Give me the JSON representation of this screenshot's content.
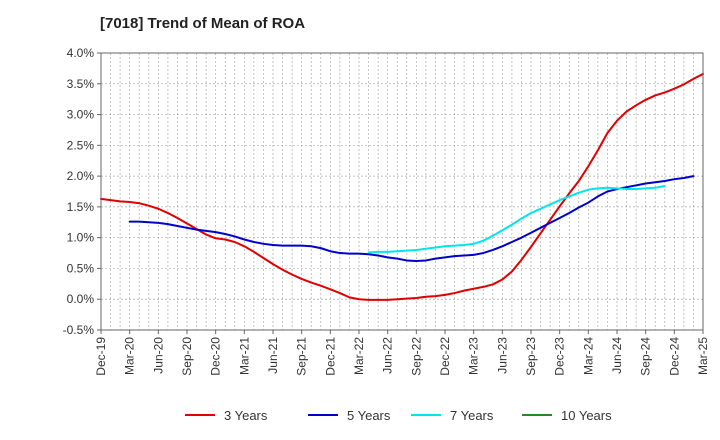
{
  "chart_data": {
    "type": "line",
    "title": "[7018]  Trend of Mean of ROA",
    "xlabel": "",
    "ylabel": "",
    "ylim": [
      -0.5,
      4.0
    ],
    "yticks": [
      -0.5,
      0.0,
      0.5,
      1.0,
      1.5,
      2.0,
      2.5,
      3.0,
      3.5,
      4.0
    ],
    "ytick_labels": [
      "-0.5%",
      "0.0%",
      "0.5%",
      "1.0%",
      "1.5%",
      "2.0%",
      "2.5%",
      "3.0%",
      "3.5%",
      "4.0%"
    ],
    "x_tick_labels": [
      "Dec-19",
      "Mar-20",
      "Jun-20",
      "Sep-20",
      "Dec-20",
      "Mar-21",
      "Jun-21",
      "Sep-21",
      "Dec-21",
      "Mar-22",
      "Jun-22",
      "Sep-22",
      "Dec-22",
      "Mar-23",
      "Jun-23",
      "Sep-23",
      "Dec-23",
      "Mar-24",
      "Jun-24",
      "Sep-24",
      "Dec-24",
      "Mar-25"
    ],
    "x_count": 64,
    "grid": true,
    "legend_position": "bottom",
    "series": [
      {
        "name": "3 Years",
        "color": "#e00000",
        "start_index": 0,
        "values": [
          1.63,
          1.61,
          1.59,
          1.58,
          1.56,
          1.52,
          1.47,
          1.4,
          1.32,
          1.23,
          1.14,
          1.05,
          0.99,
          0.97,
          0.93,
          0.86,
          0.77,
          0.67,
          0.57,
          0.48,
          0.4,
          0.33,
          0.27,
          0.22,
          0.16,
          0.1,
          0.03,
          0.0,
          -0.01,
          -0.01,
          -0.01,
          0.0,
          0.01,
          0.02,
          0.04,
          0.05,
          0.07,
          0.1,
          0.14,
          0.17,
          0.2,
          0.24,
          0.32,
          0.45,
          0.64,
          0.85,
          1.07,
          1.29,
          1.51,
          1.72,
          1.92,
          2.16,
          2.42,
          2.7,
          2.9,
          3.05,
          3.15,
          3.24,
          3.31,
          3.36,
          3.42,
          3.49,
          3.58,
          3.66
        ]
      },
      {
        "name": "5 Years",
        "color": "#0000cc",
        "start_index": 3,
        "values": [
          1.26,
          1.26,
          1.25,
          1.24,
          1.22,
          1.19,
          1.16,
          1.13,
          1.11,
          1.09,
          1.06,
          1.02,
          0.97,
          0.93,
          0.9,
          0.88,
          0.87,
          0.87,
          0.87,
          0.86,
          0.83,
          0.78,
          0.75,
          0.74,
          0.74,
          0.73,
          0.71,
          0.68,
          0.66,
          0.63,
          0.62,
          0.63,
          0.66,
          0.68,
          0.7,
          0.71,
          0.72,
          0.75,
          0.8,
          0.86,
          0.93,
          1.0,
          1.08,
          1.16,
          1.24,
          1.32,
          1.4,
          1.49,
          1.57,
          1.67,
          1.75,
          1.79,
          1.82,
          1.85,
          1.88,
          1.9,
          1.92,
          1.95,
          1.97,
          2.0
        ]
      },
      {
        "name": "7 Years",
        "color": "#00e5ee",
        "start_index": 28,
        "values": [
          0.76,
          0.77,
          0.77,
          0.78,
          0.79,
          0.8,
          0.82,
          0.84,
          0.86,
          0.87,
          0.88,
          0.9,
          0.95,
          1.03,
          1.12,
          1.21,
          1.31,
          1.4,
          1.47,
          1.54,
          1.61,
          1.67,
          1.73,
          1.78,
          1.8,
          1.81,
          1.8,
          1.79,
          1.79,
          1.8,
          1.81,
          1.84
        ]
      },
      {
        "name": "10 Years",
        "color": "#228b22",
        "start_index": 0,
        "values": []
      }
    ]
  }
}
